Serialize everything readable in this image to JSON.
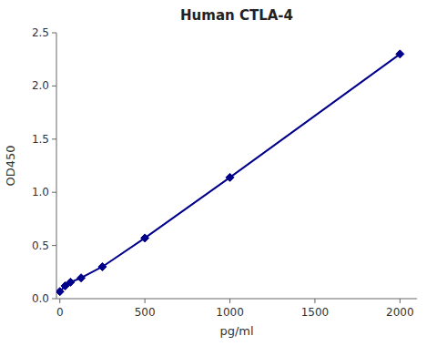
{
  "chart_data": {
    "type": "line",
    "title": "Human CTLA-4",
    "xlabel": "pg/ml",
    "ylabel": "OD450",
    "x": [
      0,
      31.25,
      62.5,
      125,
      250,
      500,
      1000,
      2000
    ],
    "values": [
      0.067,
      0.12,
      0.155,
      0.195,
      0.3,
      0.57,
      1.14,
      2.3
    ],
    "color": "#00008B",
    "marker": "diamond",
    "grid": false,
    "xlim": [
      -20,
      2100
    ],
    "ylim": [
      0,
      2.5
    ],
    "xticks": [
      0,
      500,
      1000,
      1500,
      2000
    ],
    "yticks": [
      {
        "value": 0,
        "label": "0.0"
      },
      0.5,
      {
        "value": 1.0,
        "label": "1.0"
      },
      1.5,
      {
        "value": 2.0,
        "label": "2.0"
      },
      2.5
    ]
  }
}
